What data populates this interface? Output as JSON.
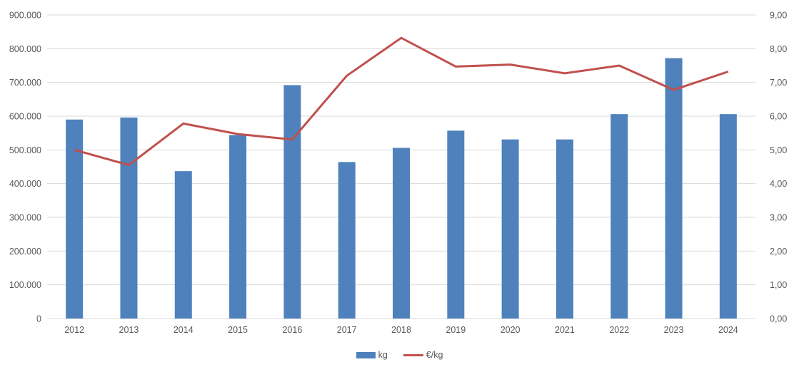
{
  "chart_data": {
    "type": "combo",
    "categories": [
      "2012",
      "2013",
      "2014",
      "2015",
      "2016",
      "2017",
      "2018",
      "2019",
      "2020",
      "2021",
      "2022",
      "2023",
      "2024"
    ],
    "series": [
      {
        "name": "kg",
        "type": "bar",
        "axis": "left",
        "color": "#4F81BD",
        "values": [
          590000,
          596000,
          437000,
          544000,
          692000,
          464000,
          506000,
          557000,
          531000,
          531000,
          606000,
          772000,
          606000
        ]
      },
      {
        "name": "€/kg",
        "type": "line",
        "axis": "right",
        "color": "#C0504D",
        "values": [
          5.0,
          4.55,
          5.78,
          5.47,
          5.31,
          7.2,
          8.32,
          7.47,
          7.53,
          7.27,
          7.5,
          6.78,
          7.32
        ]
      }
    ],
    "left_axis": {
      "min": 0,
      "max": 900000,
      "step": 100000,
      "tick_labels": [
        "0",
        "100.000",
        "200.000",
        "300.000",
        "400.000",
        "500.000",
        "600.000",
        "700.000",
        "800.000",
        "900.000"
      ]
    },
    "right_axis": {
      "min": 0,
      "max": 9,
      "step": 1,
      "tick_labels": [
        "0,00",
        "1,00",
        "2,00",
        "3,00",
        "4,00",
        "5,00",
        "6,00",
        "7,00",
        "8,00",
        "9,00"
      ]
    },
    "grid": true,
    "gridline_color": "#D9D9D9",
    "tick_text_color": "#595959",
    "legend_position": "bottom",
    "title": ""
  }
}
